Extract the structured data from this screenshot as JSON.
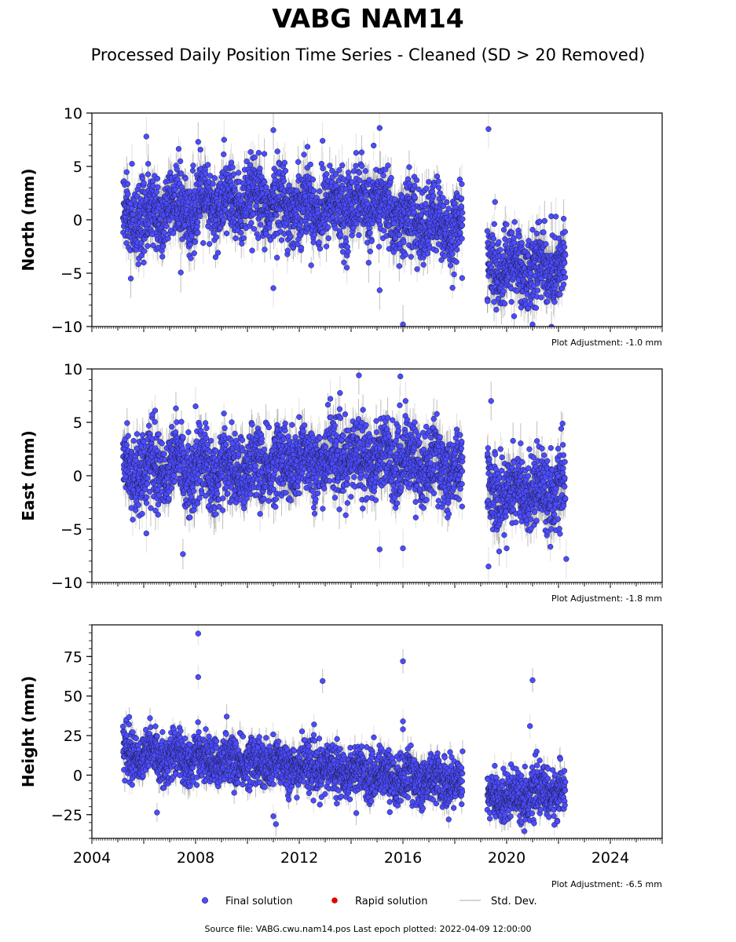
{
  "title": "VABG NAM14",
  "subtitle": "Processed Daily Position Time Series - Cleaned (SD > 20 Removed)",
  "footer": "Source file: VABG.cwu.nam14.pos  Last epoch plotted: 2022-04-09 12:00:00",
  "legend": {
    "final": "Final solution",
    "rapid": "Rapid solution",
    "std": "Std. Dev."
  },
  "colors": {
    "final": "#4c4cff",
    "rapid": "#e00000",
    "std": "#c8c8c8",
    "edge": "#1a1a40"
  },
  "chart_data": {
    "type": "scatter",
    "x_range": [
      2004,
      2026
    ],
    "x_ticks": [
      2004,
      2008,
      2012,
      2016,
      2020,
      2024
    ],
    "gap": [
      2018.3,
      2019.25
    ],
    "data_span": [
      2005.2,
      2022.27
    ],
    "panels": [
      {
        "name": "north",
        "ylabel": "North (mm)",
        "ylim": [
          -10,
          10
        ],
        "yticks": [
          10,
          5,
          0,
          -5,
          -10
        ],
        "ytick_labels": [
          "10",
          "5",
          "0",
          "−5",
          "−10"
        ],
        "adjustment": "Plot Adjustment: -1.0 mm",
        "trend": [
          [
            2005.2,
            0.0
          ],
          [
            2007,
            0.8
          ],
          [
            2009,
            1.5
          ],
          [
            2011,
            1.5
          ],
          [
            2013,
            1.2
          ],
          [
            2015,
            1.5
          ],
          [
            2016,
            0.0
          ],
          [
            2018.2,
            -0.8
          ],
          [
            2019.3,
            -4.5
          ],
          [
            2022.3,
            -4.5
          ]
        ],
        "outliers": [
          [
            2006.1,
            7.8
          ],
          [
            2008.1,
            7.3
          ],
          [
            2009.1,
            7.5
          ],
          [
            2011.0,
            8.4
          ],
          [
            2012.9,
            7.4
          ],
          [
            2015.1,
            8.6
          ],
          [
            2019.3,
            8.5
          ],
          [
            2016.0,
            -9.8
          ],
          [
            2021.0,
            -9.8
          ],
          [
            2015.1,
            -6.6
          ],
          [
            2011.0,
            -6.4
          ],
          [
            2005.5,
            -5.5
          ],
          [
            2021.9,
            0.3
          ],
          [
            2022.2,
            0.1
          ]
        ]
      },
      {
        "name": "east",
        "ylabel": "East (mm)",
        "ylim": [
          -10,
          10
        ],
        "yticks": [
          10,
          5,
          0,
          -5,
          -10
        ],
        "ytick_labels": [
          "10",
          "5",
          "0",
          "−5",
          "−10"
        ],
        "adjustment": "Plot Adjustment: -1.8 mm",
        "trend": [
          [
            2005.2,
            0.5
          ],
          [
            2007,
            1.0
          ],
          [
            2009,
            0.5
          ],
          [
            2011,
            1.0
          ],
          [
            2013,
            1.5
          ],
          [
            2015,
            1.8
          ],
          [
            2016,
            1.5
          ],
          [
            2018.2,
            0.5
          ],
          [
            2019.3,
            -1.5
          ],
          [
            2022.3,
            -1.2
          ]
        ],
        "outliers": [
          [
            2014.3,
            9.4
          ],
          [
            2015.9,
            9.3
          ],
          [
            2016.1,
            7.0
          ],
          [
            2019.4,
            7.0
          ],
          [
            2013.2,
            7.2
          ],
          [
            2008.0,
            6.5
          ],
          [
            2016.0,
            -6.8
          ],
          [
            2015.1,
            -6.9
          ],
          [
            2019.3,
            -8.5
          ],
          [
            2022.3,
            -7.8
          ],
          [
            2006.1,
            -5.4
          ],
          [
            2020.0,
            -6.8
          ]
        ]
      },
      {
        "name": "height",
        "ylabel": "Height (mm)",
        "ylim": [
          -40,
          95
        ],
        "yticks": [
          75,
          50,
          25,
          0,
          -25
        ],
        "ytick_labels": [
          "75",
          "50",
          "25",
          "0",
          "−25"
        ],
        "adjustment": "Plot Adjustment: -6.5 mm",
        "trend": [
          [
            2005.2,
            14
          ],
          [
            2007,
            12
          ],
          [
            2009,
            9
          ],
          [
            2011,
            7
          ],
          [
            2013,
            4
          ],
          [
            2015,
            1
          ],
          [
            2016,
            -2
          ],
          [
            2018.2,
            -4
          ],
          [
            2019.3,
            -14
          ],
          [
            2022.3,
            -10
          ]
        ],
        "outliers": [
          [
            2008.1,
            89.5
          ],
          [
            2008.1,
            62
          ],
          [
            2012.9,
            59.5
          ],
          [
            2016.0,
            72
          ],
          [
            2016.0,
            34
          ],
          [
            2016.0,
            29
          ],
          [
            2021.0,
            60
          ],
          [
            2020.9,
            31
          ],
          [
            2011.1,
            -31
          ],
          [
            2011.0,
            -26
          ],
          [
            2014.2,
            -24
          ],
          [
            2009.2,
            37
          ]
        ]
      }
    ]
  }
}
